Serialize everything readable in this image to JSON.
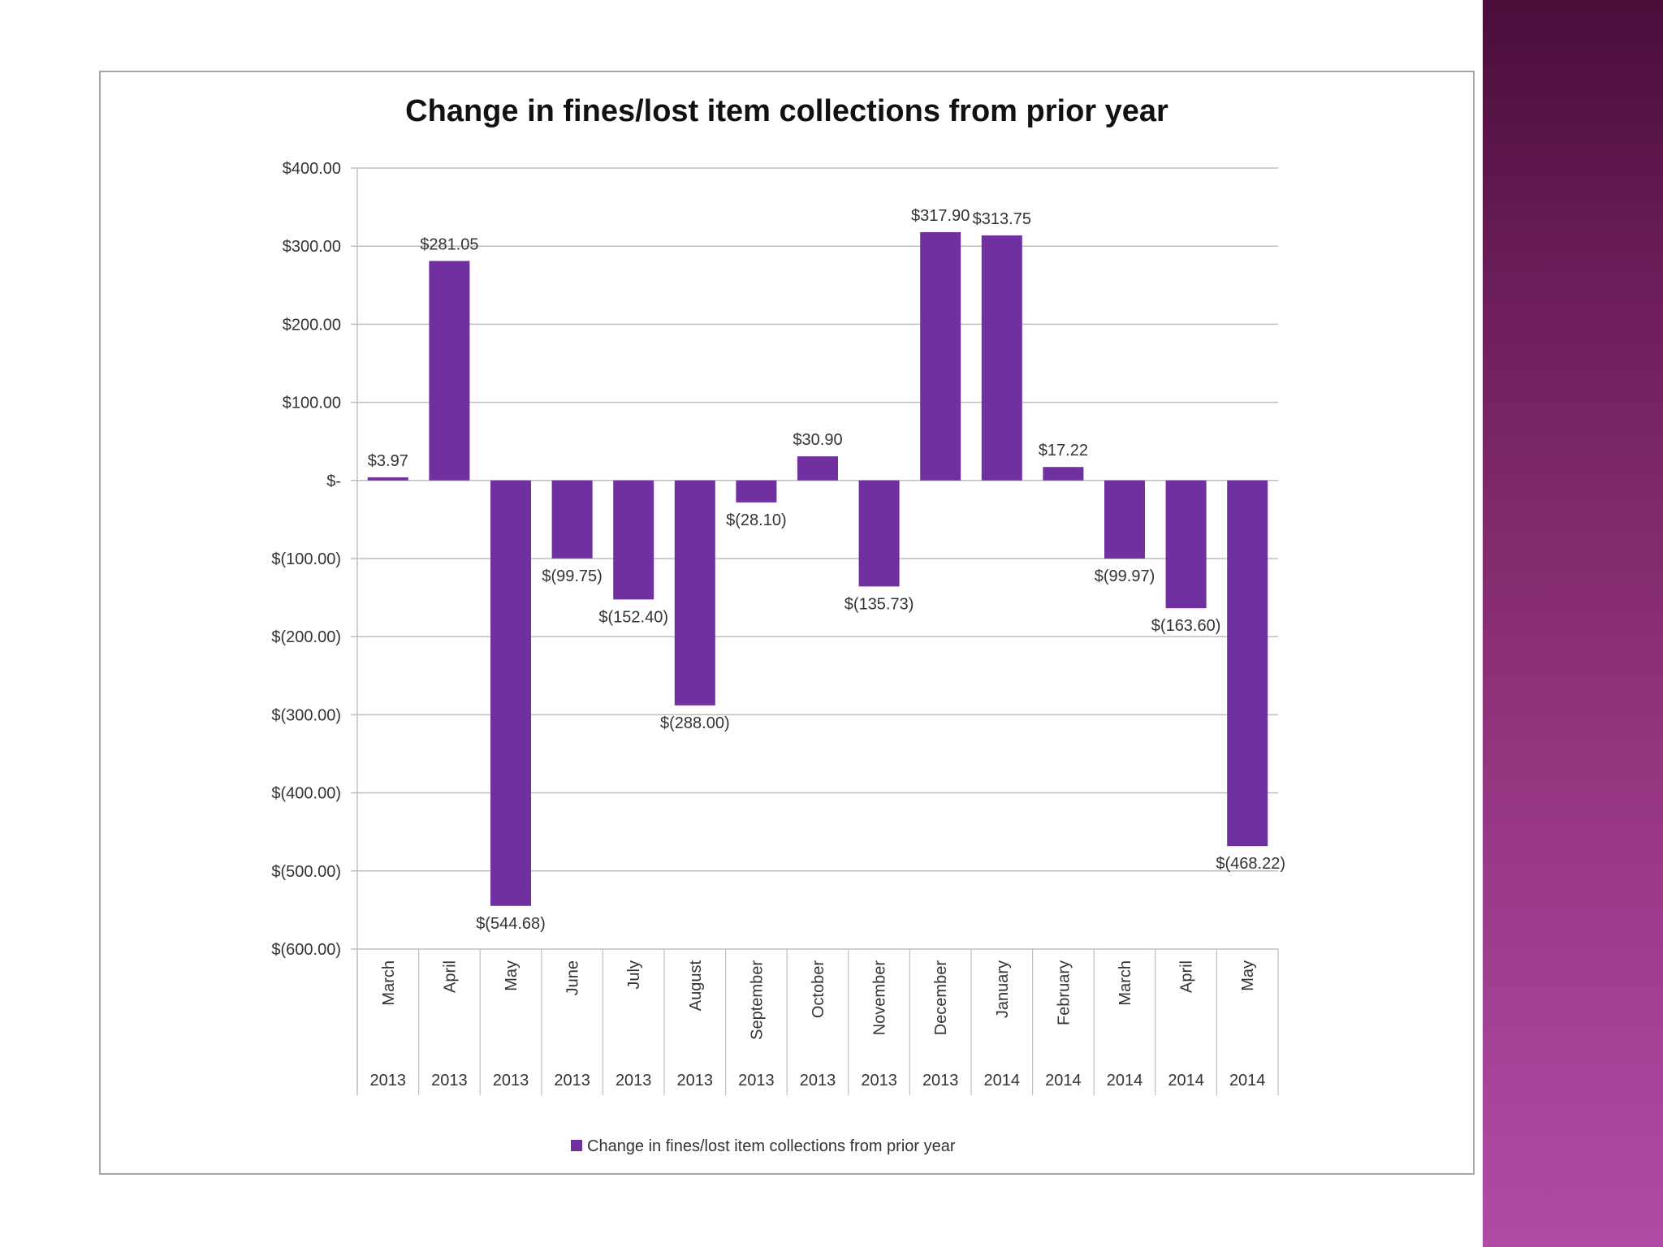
{
  "chart_data": {
    "type": "bar",
    "title": "Change in fines/lost item collections from prior year",
    "xlabel": "",
    "ylabel": "",
    "ylim": [
      -600,
      400
    ],
    "yticks": [
      400,
      300,
      200,
      100,
      0,
      -100,
      -200,
      -300,
      -400,
      -500,
      -600
    ],
    "ytick_labels": [
      "$400.00",
      "$300.00",
      "$200.00",
      "$100.00",
      "$-",
      "$(100.00)",
      "$(200.00)",
      "$(300.00)",
      "$(400.00)",
      "$(500.00)",
      "$(600.00)"
    ],
    "categories": [
      {
        "month": "March",
        "year": "2013"
      },
      {
        "month": "April",
        "year": "2013"
      },
      {
        "month": "May",
        "year": "2013"
      },
      {
        "month": "June",
        "year": "2013"
      },
      {
        "month": "July",
        "year": "2013"
      },
      {
        "month": "August",
        "year": "2013"
      },
      {
        "month": "September",
        "year": "2013"
      },
      {
        "month": "October",
        "year": "2013"
      },
      {
        "month": "November",
        "year": "2013"
      },
      {
        "month": "December",
        "year": "2013"
      },
      {
        "month": "January",
        "year": "2014"
      },
      {
        "month": "February",
        "year": "2014"
      },
      {
        "month": "March",
        "year": "2014"
      },
      {
        "month": "April",
        "year": "2014"
      },
      {
        "month": "May",
        "year": "2014"
      }
    ],
    "series": [
      {
        "name": "Change in fines/lost item collections from prior year",
        "values": [
          3.97,
          281.05,
          -544.68,
          -99.75,
          -152.4,
          -288.0,
          -28.1,
          30.9,
          -135.73,
          317.9,
          313.75,
          17.22,
          -99.97,
          -163.6,
          -468.22
        ],
        "labels": [
          "$3.97",
          "$281.05",
          "$(544.68)",
          "$(99.75)",
          "$(152.40)",
          "$(288.00)",
          "$(28.10)",
          "$30.90",
          "$(135.73)",
          "$317.90",
          "$313.75",
          "$17.22",
          "$(99.97)",
          "$(163.60)",
          "$(468.22)"
        ]
      }
    ],
    "grid": true,
    "legend": "bottom",
    "colors": {
      "bar": "#7030a0",
      "grid": "#bfbfbf",
      "axis": "#bfbfbf",
      "accent": "#9b3a8c"
    }
  }
}
